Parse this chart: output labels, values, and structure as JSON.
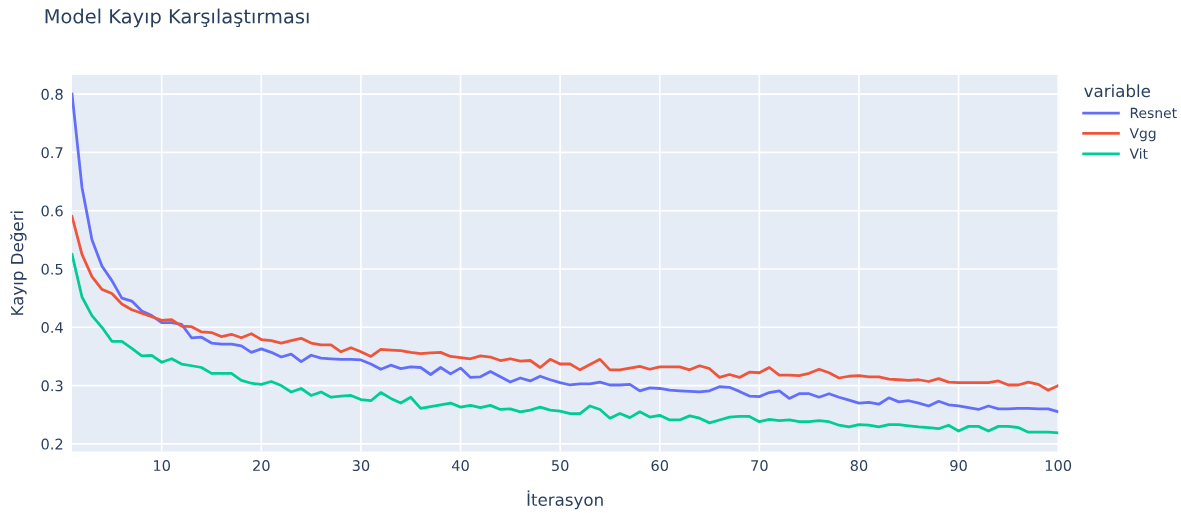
{
  "chart_data": {
    "type": "line",
    "title": "Model Kayıp Karşılaştırması",
    "xlabel": "İterasyon",
    "ylabel": "Kayıp Değeri",
    "legend_title": "variable",
    "legend": "top right",
    "grid": true,
    "marker": "none",
    "line_style": "solid",
    "x": [
      1,
      2,
      3,
      4,
      5,
      6,
      7,
      8,
      9,
      10,
      11,
      12,
      13,
      14,
      15,
      16,
      17,
      18,
      19,
      20,
      21,
      22,
      23,
      24,
      25,
      26,
      27,
      28,
      29,
      30,
      31,
      32,
      33,
      34,
      35,
      36,
      37,
      38,
      39,
      40,
      41,
      42,
      43,
      44,
      45,
      46,
      47,
      48,
      49,
      50,
      51,
      52,
      53,
      54,
      55,
      56,
      57,
      58,
      59,
      60,
      61,
      62,
      63,
      64,
      65,
      66,
      67,
      68,
      69,
      70,
      71,
      72,
      73,
      74,
      75,
      76,
      77,
      78,
      79,
      80,
      81,
      82,
      83,
      84,
      85,
      86,
      87,
      88,
      89,
      90,
      91,
      92,
      93,
      94,
      95,
      96,
      97,
      98,
      99,
      100
    ],
    "xlim": [
      1,
      100
    ],
    "xticks": [
      10,
      20,
      30,
      40,
      50,
      60,
      70,
      80,
      90,
      100
    ],
    "ylim": [
      0.187,
      0.833
    ],
    "yticks": [
      0.2,
      0.3,
      0.4,
      0.5,
      0.6,
      0.7,
      0.8
    ],
    "series": [
      {
        "name": "Resnet",
        "color": "#636efa",
        "values": [
          0.8,
          0.64,
          0.55,
          0.505,
          0.48,
          0.45,
          0.445,
          0.428,
          0.42,
          0.408,
          0.408,
          0.405,
          0.382,
          0.383,
          0.373,
          0.371,
          0.371,
          0.368,
          0.357,
          0.363,
          0.357,
          0.349,
          0.354,
          0.341,
          0.352,
          0.347,
          0.346,
          0.345,
          0.345,
          0.344,
          0.337,
          0.328,
          0.335,
          0.329,
          0.332,
          0.331,
          0.319,
          0.331,
          0.32,
          0.33,
          0.314,
          0.315,
          0.324,
          0.315,
          0.306,
          0.313,
          0.308,
          0.316,
          0.31,
          0.305,
          0.301,
          0.303,
          0.303,
          0.306,
          0.301,
          0.301,
          0.302,
          0.291,
          0.296,
          0.295,
          0.292,
          0.291,
          0.29,
          0.289,
          0.291,
          0.298,
          0.297,
          0.29,
          0.282,
          0.281,
          0.288,
          0.291,
          0.278,
          0.286,
          0.286,
          0.28,
          0.286,
          0.28,
          0.275,
          0.27,
          0.271,
          0.268,
          0.279,
          0.272,
          0.274,
          0.27,
          0.265,
          0.273,
          0.267,
          0.265,
          0.262,
          0.259,
          0.265,
          0.26,
          0.26,
          0.261,
          0.261,
          0.26,
          0.26,
          0.255
        ]
      },
      {
        "name": "Vgg",
        "color": "#ef553b",
        "values": [
          0.59,
          0.525,
          0.487,
          0.465,
          0.458,
          0.44,
          0.43,
          0.424,
          0.418,
          0.412,
          0.413,
          0.402,
          0.401,
          0.392,
          0.391,
          0.384,
          0.388,
          0.382,
          0.389,
          0.379,
          0.377,
          0.373,
          0.377,
          0.381,
          0.373,
          0.37,
          0.37,
          0.358,
          0.365,
          0.358,
          0.35,
          0.362,
          0.361,
          0.36,
          0.357,
          0.355,
          0.356,
          0.357,
          0.35,
          0.348,
          0.346,
          0.351,
          0.349,
          0.343,
          0.346,
          0.342,
          0.343,
          0.331,
          0.345,
          0.337,
          0.337,
          0.327,
          0.336,
          0.345,
          0.327,
          0.327,
          0.33,
          0.333,
          0.328,
          0.332,
          0.332,
          0.332,
          0.327,
          0.334,
          0.329,
          0.314,
          0.319,
          0.314,
          0.323,
          0.322,
          0.331,
          0.318,
          0.318,
          0.317,
          0.321,
          0.328,
          0.322,
          0.313,
          0.316,
          0.317,
          0.315,
          0.315,
          0.311,
          0.31,
          0.309,
          0.31,
          0.307,
          0.312,
          0.306,
          0.305,
          0.305,
          0.305,
          0.305,
          0.308,
          0.301,
          0.301,
          0.306,
          0.302,
          0.292,
          0.3
        ]
      },
      {
        "name": "Vit",
        "color": "#00cc96",
        "values": [
          0.525,
          0.452,
          0.42,
          0.4,
          0.376,
          0.376,
          0.364,
          0.351,
          0.352,
          0.34,
          0.346,
          0.337,
          0.334,
          0.331,
          0.321,
          0.321,
          0.321,
          0.309,
          0.304,
          0.302,
          0.307,
          0.3,
          0.289,
          0.295,
          0.283,
          0.289,
          0.28,
          0.282,
          0.283,
          0.276,
          0.274,
          0.288,
          0.278,
          0.27,
          0.28,
          0.261,
          0.264,
          0.267,
          0.27,
          0.263,
          0.266,
          0.262,
          0.266,
          0.259,
          0.26,
          0.255,
          0.258,
          0.263,
          0.258,
          0.256,
          0.252,
          0.252,
          0.265,
          0.259,
          0.244,
          0.252,
          0.245,
          0.255,
          0.246,
          0.249,
          0.241,
          0.241,
          0.248,
          0.244,
          0.236,
          0.241,
          0.246,
          0.247,
          0.247,
          0.238,
          0.242,
          0.24,
          0.241,
          0.238,
          0.238,
          0.24,
          0.238,
          0.232,
          0.229,
          0.233,
          0.232,
          0.229,
          0.233,
          0.233,
          0.231,
          0.229,
          0.228,
          0.226,
          0.232,
          0.222,
          0.23,
          0.23,
          0.222,
          0.23,
          0.23,
          0.228,
          0.22,
          0.22,
          0.22,
          0.219
        ]
      }
    ]
  }
}
